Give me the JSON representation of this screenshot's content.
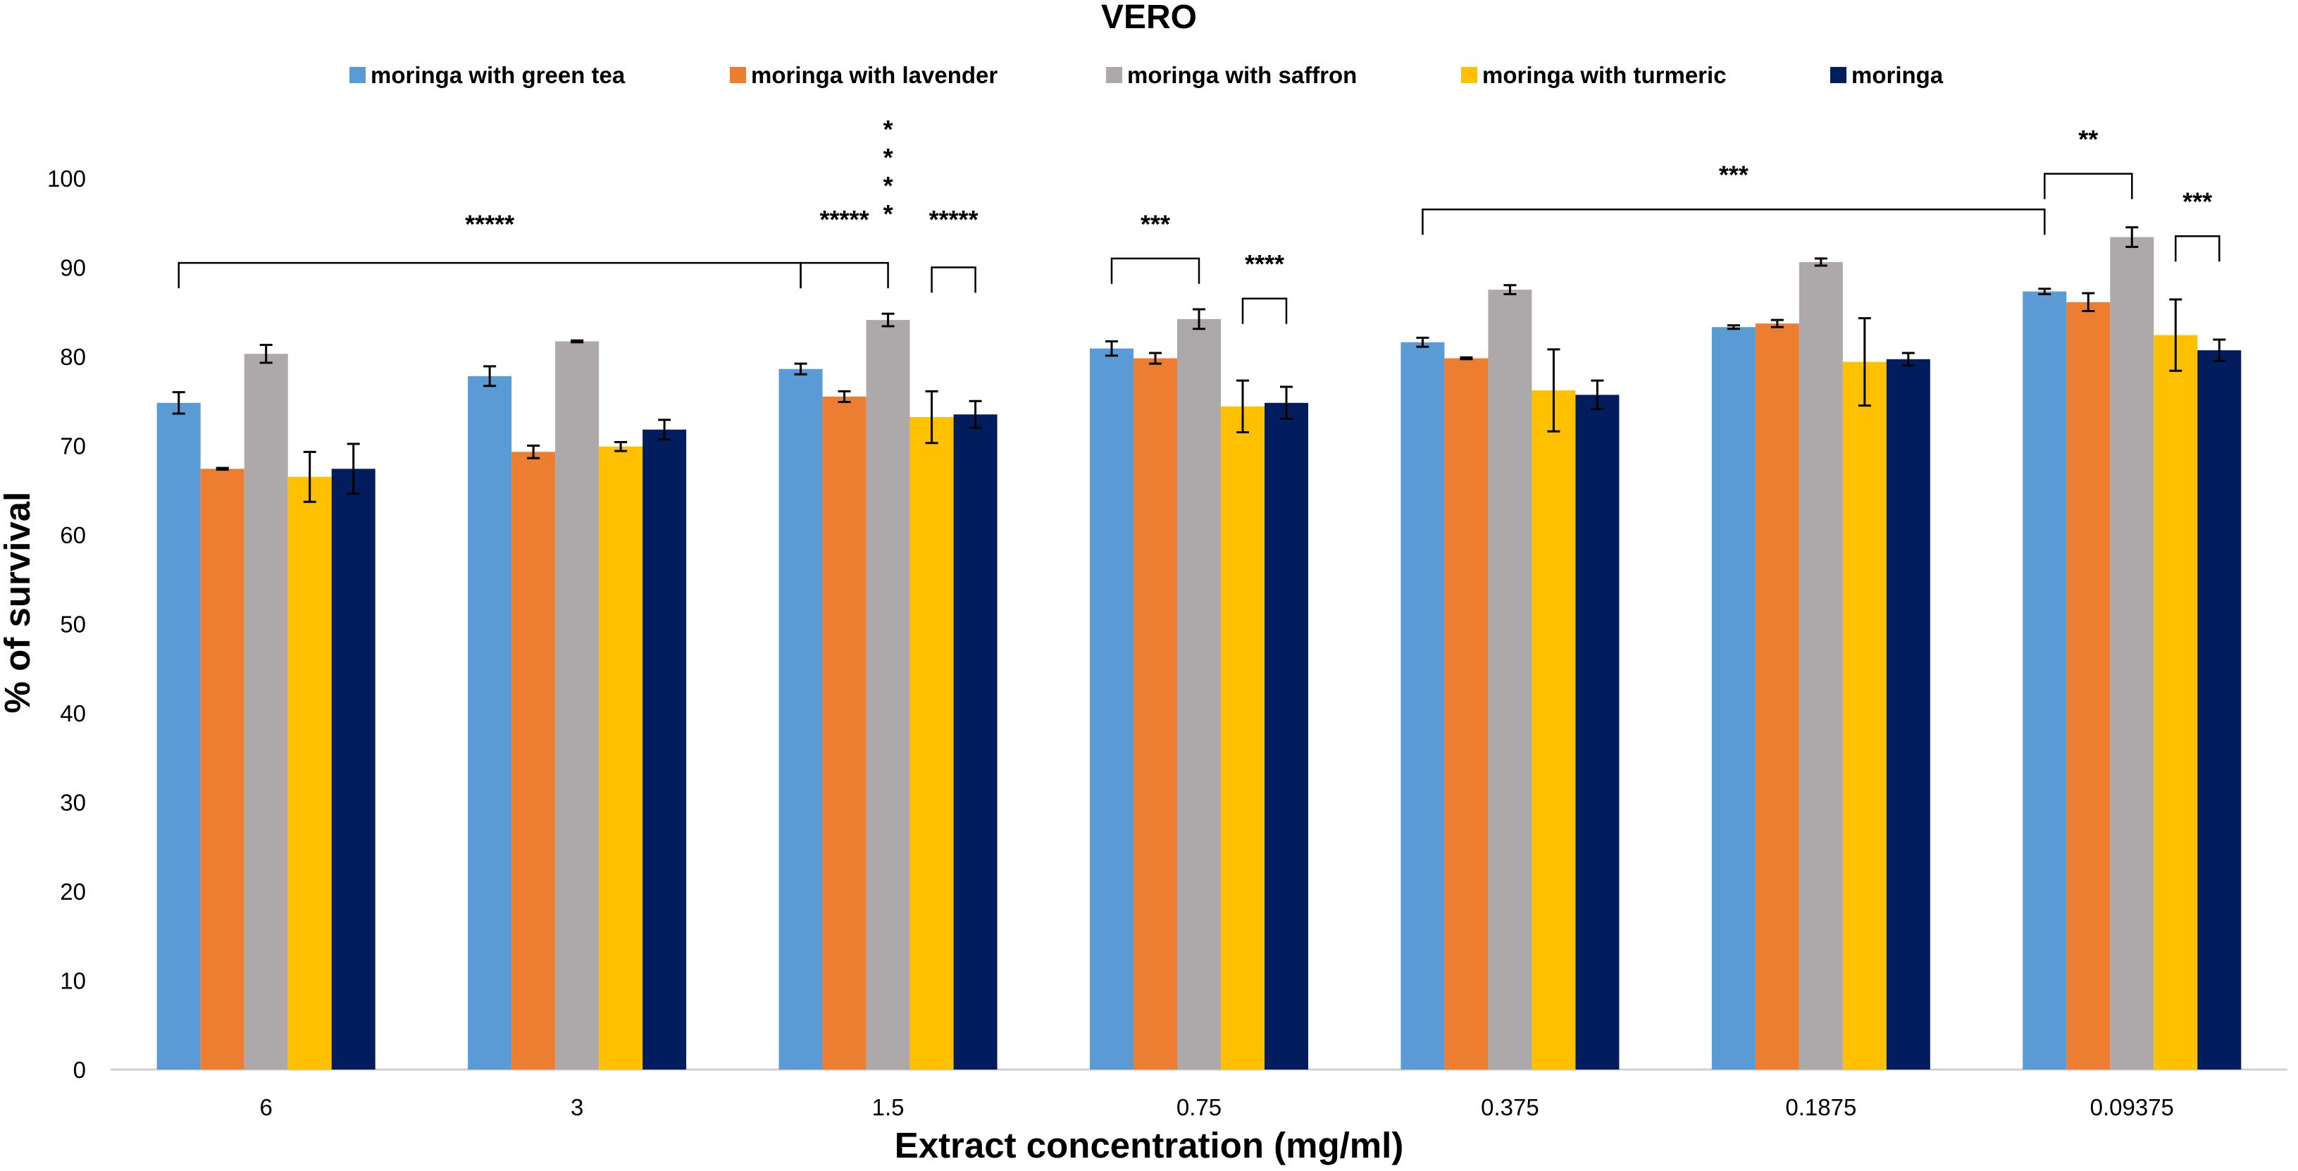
{
  "chart_data": {
    "type": "bar",
    "title": "VERO",
    "xlabel": "Extract concentration (mg/ml)",
    "ylabel": "% of survival",
    "ylim": [
      0,
      100
    ],
    "yticks": [
      0,
      10,
      20,
      30,
      40,
      50,
      60,
      70,
      80,
      90,
      100
    ],
    "grid": false,
    "legend_position": "top",
    "categories": [
      "6",
      "3",
      "1.5",
      "0.75",
      "0.375",
      "0.1875",
      "0.09375"
    ],
    "series": [
      {
        "name": "moringa with green tea",
        "color": "#5B9BD5",
        "values": [
          74.8,
          77.8,
          78.6,
          80.9,
          81.6,
          83.3,
          87.3
        ],
        "errors": [
          1.2,
          1.1,
          0.6,
          0.8,
          0.5,
          0.2,
          0.3
        ]
      },
      {
        "name": "moringa with lavender",
        "color": "#ED7D31",
        "values": [
          67.4,
          69.3,
          75.5,
          79.8,
          79.8,
          83.7,
          86.1
        ],
        "errors": [
          0.1,
          0.7,
          0.6,
          0.6,
          0.1,
          0.4,
          1.0
        ]
      },
      {
        "name": "moringa with saffron",
        "color": "#ADA9AB",
        "values": [
          80.3,
          81.7,
          84.1,
          84.2,
          87.5,
          90.6,
          93.4
        ],
        "errors": [
          1.0,
          0.1,
          0.7,
          1.1,
          0.5,
          0.4,
          1.1
        ]
      },
      {
        "name": "moringa with turmeric",
        "color": "#FFC000",
        "values": [
          66.5,
          69.9,
          73.2,
          74.4,
          76.2,
          79.4,
          82.4
        ],
        "errors": [
          2.8,
          0.5,
          2.9,
          2.9,
          4.6,
          4.9,
          4.0
        ]
      },
      {
        "name": "moringa",
        "color": "#021D5E",
        "values": [
          67.4,
          71.8,
          73.5,
          74.8,
          75.7,
          79.7,
          80.7
        ],
        "errors": [
          2.8,
          1.1,
          1.5,
          1.8,
          1.6,
          0.7,
          1.2
        ]
      }
    ],
    "annotations": [
      {
        "label": "*****",
        "from_category": "6",
        "from_series": 0,
        "to_category": "1.5",
        "to_series": 0,
        "level": 90.5,
        "text_level": 95.0
      },
      {
        "label": "*****",
        "from_category": "1.5",
        "from_series": 0,
        "to_category": "1.5",
        "to_series": 2,
        "level": 90.5,
        "text_level": 95.5
      },
      {
        "label": "*****",
        "from_category": "1.5",
        "from_series": 3,
        "to_category": "1.5",
        "to_series": 4,
        "level": 90.0,
        "text_level": 95.5
      },
      {
        "label": "****",
        "vertical": true,
        "category": "1.5",
        "series": 2,
        "text_level": 104.5
      },
      {
        "label": "***",
        "from_category": "0.75",
        "from_series": 0,
        "to_category": "0.75",
        "to_series": 2,
        "level": 91.0,
        "text_level": 95.0
      },
      {
        "label": "****",
        "from_category": "0.75",
        "from_series": 3,
        "to_category": "0.75",
        "to_series": 4,
        "level": 86.5,
        "text_level": 90.5
      },
      {
        "label": "***",
        "from_category": "0.375",
        "from_series": 0,
        "to_category": "0.09375",
        "to_series": 0,
        "level": 96.5,
        "text_level": 100.5
      },
      {
        "label": "**",
        "from_category": "0.09375",
        "from_series": 0,
        "to_category": "0.09375",
        "to_series": 2,
        "level": 100.5,
        "text_level": 104.5
      },
      {
        "label": "***",
        "from_category": "0.09375",
        "from_series": 3,
        "to_category": "0.09375",
        "to_series": 4,
        "level": 93.5,
        "text_level": 97.5
      }
    ]
  }
}
